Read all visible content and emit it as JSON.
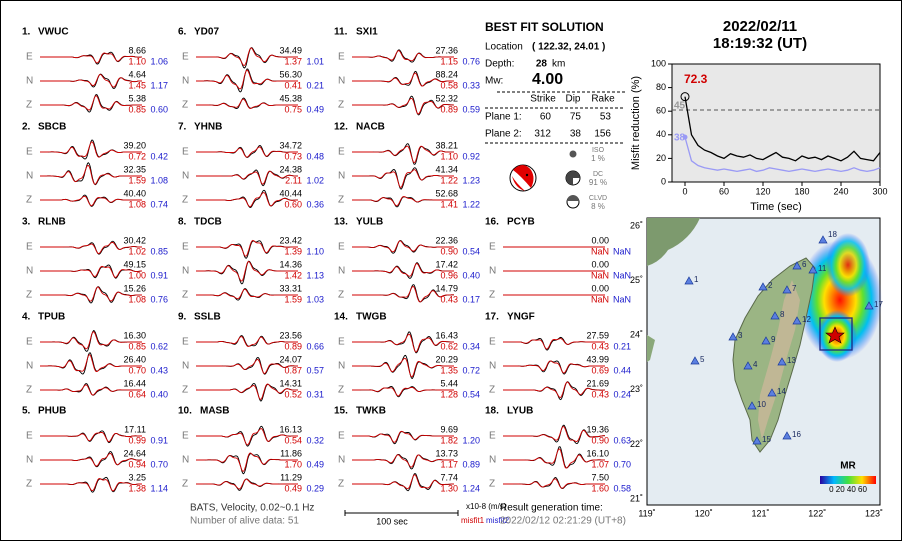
{
  "components": [
    "E",
    "N",
    "Z"
  ],
  "stations": [
    {
      "name": "1.",
      "code": "VWUC",
      "traces": [
        {
          "amplitude": "8.66",
          "misfit1": "1.10",
          "misfit2": "1.06"
        },
        {
          "amplitude": "4.64",
          "misfit1": "1.45",
          "misfit2": "1.17"
        },
        {
          "amplitude": "5.38",
          "misfit1": "0.85",
          "misfit2": "0.60"
        }
      ]
    },
    {
      "name": "2.",
      "code": "SBCB",
      "traces": [
        {
          "amplitude": "39.20",
          "misfit1": "0.72",
          "misfit2": "0.42"
        },
        {
          "amplitude": "32.35",
          "misfit1": "1.59",
          "misfit2": "1.08"
        },
        {
          "amplitude": "40.40",
          "misfit1": "1.08",
          "misfit2": "0.74"
        }
      ]
    },
    {
      "name": "3.",
      "code": "RLNB",
      "traces": [
        {
          "amplitude": "30.42",
          "misfit1": "1.02",
          "misfit2": "0.85"
        },
        {
          "amplitude": "49.15",
          "misfit1": "1.00",
          "misfit2": "0.91"
        },
        {
          "amplitude": "15.26",
          "misfit1": "1.08",
          "misfit2": "0.76"
        }
      ]
    },
    {
      "name": "4.",
      "code": "TPUB",
      "traces": [
        {
          "amplitude": "16.30",
          "misfit1": "0.85",
          "misfit2": "0.62"
        },
        {
          "amplitude": "26.40",
          "misfit1": "0.70",
          "misfit2": "0.43"
        },
        {
          "amplitude": "16.44",
          "misfit1": "0.64",
          "misfit2": "0.40"
        }
      ]
    },
    {
      "name": "5.",
      "code": "PHUB",
      "traces": [
        {
          "amplitude": "17.11",
          "misfit1": "0.99",
          "misfit2": "0.91"
        },
        {
          "amplitude": "24.64",
          "misfit1": "0.94",
          "misfit2": "0.70"
        },
        {
          "amplitude": "3.25",
          "misfit1": "1.38",
          "misfit2": "1.14"
        }
      ]
    },
    {
      "name": "6.",
      "code": "YD07",
      "traces": [
        {
          "amplitude": "34.49",
          "misfit1": "1.37",
          "misfit2": "1.01"
        },
        {
          "amplitude": "56.30",
          "misfit1": "0.41",
          "misfit2": "0.21"
        },
        {
          "amplitude": "45.38",
          "misfit1": "0.75",
          "misfit2": "0.49"
        }
      ]
    },
    {
      "name": "7.",
      "code": "YHNB",
      "traces": [
        {
          "amplitude": "34.72",
          "misfit1": "0.73",
          "misfit2": "0.48"
        },
        {
          "amplitude": "24.38",
          "misfit1": "2.11",
          "misfit2": "1.02"
        },
        {
          "amplitude": "40.44",
          "misfit1": "0.60",
          "misfit2": "0.36"
        }
      ]
    },
    {
      "name": "8.",
      "code": "TDCB",
      "traces": [
        {
          "amplitude": "23.42",
          "misfit1": "1.39",
          "misfit2": "1.10"
        },
        {
          "amplitude": "14.36",
          "misfit1": "1.42",
          "misfit2": "1.13"
        },
        {
          "amplitude": "33.31",
          "misfit1": "1.59",
          "misfit2": "1.03"
        }
      ]
    },
    {
      "name": "9.",
      "code": "SSLB",
      "traces": [
        {
          "amplitude": "23.56",
          "misfit1": "0.89",
          "misfit2": "0.66"
        },
        {
          "amplitude": "24.07",
          "misfit1": "0.87",
          "misfit2": "0.57"
        },
        {
          "amplitude": "14.31",
          "misfit1": "0.52",
          "misfit2": "0.31"
        }
      ]
    },
    {
      "name": "10.",
      "code": "MASB",
      "traces": [
        {
          "amplitude": "16.13",
          "misfit1": "0.54",
          "misfit2": "0.32"
        },
        {
          "amplitude": "11.86",
          "misfit1": "1.70",
          "misfit2": "0.49"
        },
        {
          "amplitude": "11.29",
          "misfit1": "0.49",
          "misfit2": "0.29"
        }
      ]
    },
    {
      "name": "11.",
      "code": "SXI1",
      "traces": [
        {
          "amplitude": "27.36",
          "misfit1": "1.15",
          "misfit2": "0.76"
        },
        {
          "amplitude": "88.24",
          "misfit1": "0.58",
          "misfit2": "0.33"
        },
        {
          "amplitude": "52.32",
          "misfit1": "0.89",
          "misfit2": "0.59"
        }
      ]
    },
    {
      "name": "12.",
      "code": "NACB",
      "traces": [
        {
          "amplitude": "38.21",
          "misfit1": "1.10",
          "misfit2": "0.92"
        },
        {
          "amplitude": "41.34",
          "misfit1": "1.22",
          "misfit2": "1.23"
        },
        {
          "amplitude": "52.68",
          "misfit1": "1.41",
          "misfit2": "1.22"
        }
      ]
    },
    {
      "name": "13.",
      "code": "YULB",
      "traces": [
        {
          "amplitude": "22.36",
          "misfit1": "0.90",
          "misfit2": "0.54"
        },
        {
          "amplitude": "17.42",
          "misfit1": "0.96",
          "misfit2": "0.40"
        },
        {
          "amplitude": "14.79",
          "misfit1": "0.43",
          "misfit2": "0.17"
        }
      ]
    },
    {
      "name": "14.",
      "code": "TWGB",
      "traces": [
        {
          "amplitude": "16.43",
          "misfit1": "0.62",
          "misfit2": "0.34"
        },
        {
          "amplitude": "20.29",
          "misfit1": "1.35",
          "misfit2": "0.72"
        },
        {
          "amplitude": "5.44",
          "misfit1": "1.28",
          "misfit2": "0.54"
        }
      ]
    },
    {
      "name": "15.",
      "code": "TWKB",
      "traces": [
        {
          "amplitude": "9.69",
          "misfit1": "1.82",
          "misfit2": "1.20"
        },
        {
          "amplitude": "13.73",
          "misfit1": "1.17",
          "misfit2": "0.89"
        },
        {
          "amplitude": "7.74",
          "misfit1": "1.30",
          "misfit2": "1.24"
        }
      ]
    },
    {
      "name": "16.",
      "code": "PCYB",
      "traces": [
        {
          "amplitude": "0.00",
          "misfit1": "NaN",
          "misfit2": "NaN"
        },
        {
          "amplitude": "0.00",
          "misfit1": "NaN",
          "misfit2": "NaN"
        },
        {
          "amplitude": "0.00",
          "misfit1": "NaN",
          "misfit2": "NaN"
        }
      ]
    },
    {
      "name": "17.",
      "code": "YNGF",
      "traces": [
        {
          "amplitude": "27.59",
          "misfit1": "0.43",
          "misfit2": "0.21"
        },
        {
          "amplitude": "43.99",
          "misfit1": "0.69",
          "misfit2": "0.44"
        },
        {
          "amplitude": "21.69",
          "misfit1": "0.43",
          "misfit2": "0.24"
        }
      ]
    },
    {
      "name": "18.",
      "code": "LYUB",
      "traces": [
        {
          "amplitude": "19.36",
          "misfit1": "0.90",
          "misfit2": "0.63"
        },
        {
          "amplitude": "16.10",
          "misfit1": "1.07",
          "misfit2": "0.70"
        },
        {
          "amplitude": "7.50",
          "misfit1": "1.60",
          "misfit2": "0.58"
        }
      ]
    }
  ],
  "solution": {
    "title": "BEST FIT SOLUTION",
    "location_label": "Location",
    "location": "( 122.32, 24.01 )",
    "depth_label": "Depth:",
    "depth": "28",
    "depth_unit": "km",
    "mw_label": "Mw:",
    "mw": "4.00",
    "headers": [
      "Strike",
      "Dip",
      "Rake"
    ],
    "planes": [
      {
        "label": "Plane 1:",
        "values": [
          "60",
          "75",
          "53"
        ]
      },
      {
        "label": "Plane 2:",
        "values": [
          "312",
          "38",
          "156"
        ]
      }
    ],
    "parts": [
      {
        "label": "ISO",
        "percent": "1 %"
      },
      {
        "label": "DC",
        "percent": "91 %"
      },
      {
        "label": "CLVD",
        "percent": "8 %"
      }
    ]
  },
  "event": {
    "date": "2022/02/11",
    "time": "18:19:32  (UT)"
  },
  "chart_data": {
    "type": "line",
    "xlabel": "Time (sec)",
    "ylabel": "Misfit reduction (%)",
    "x": [
      0,
      10,
      20,
      30,
      40,
      50,
      60,
      70,
      80,
      90,
      100,
      110,
      120,
      130,
      140,
      150,
      160,
      170,
      180,
      190,
      200,
      210,
      220,
      230,
      240,
      250,
      260,
      270,
      280,
      290,
      300
    ],
    "series": [
      {
        "color": "#000000",
        "values": [
          72.3,
          40,
          31,
          27,
          25,
          22,
          20,
          24,
          22,
          21,
          23,
          20,
          19,
          22,
          25,
          21,
          20,
          18,
          22,
          20,
          21,
          19,
          22,
          20,
          18,
          21,
          26,
          20,
          19,
          18,
          25
        ]
      },
      {
        "color": "#9a9af5",
        "values": [
          38,
          18,
          14,
          12,
          11,
          10,
          11,
          10,
          9,
          10,
          11,
          9,
          10,
          12,
          11,
          10,
          9,
          10,
          11,
          10,
          9,
          10,
          11,
          10,
          9,
          10,
          12,
          10,
          9,
          10,
          12
        ]
      }
    ],
    "xlim": [
      -20,
      300
    ],
    "ylim": [
      0,
      100
    ],
    "xticks": [
      0,
      60,
      120,
      180,
      240,
      300
    ],
    "yticks": [
      0,
      20,
      40,
      60,
      80,
      100
    ],
    "annotations": {
      "max_label": "72.3",
      "ref_label": "45",
      "start_label": "38"
    }
  },
  "map": {
    "lon_ticks": [
      {
        "value": 119,
        "label": "119˚"
      },
      {
        "value": 120,
        "label": "120˚"
      },
      {
        "value": 121,
        "label": "121˚"
      },
      {
        "value": 122,
        "label": "122˚"
      },
      {
        "value": 123,
        "label": "123˚"
      }
    ],
    "lat_ticks": [
      {
        "value": 21,
        "label": "21˚"
      },
      {
        "value": 22,
        "label": "22˚"
      },
      {
        "value": 23,
        "label": "23˚"
      },
      {
        "value": 24,
        "label": "24˚"
      },
      {
        "value": 25,
        "label": "25˚"
      },
      {
        "value": 26,
        "label": "26˚"
      }
    ],
    "stations": [
      "1",
      "2",
      "3",
      "4",
      "5",
      "6",
      "7",
      "8",
      "9",
      "10",
      "11",
      "12",
      "13",
      "14",
      "15",
      "16",
      "17",
      "18"
    ],
    "colorbar_title": "MR",
    "colorbar_ticks": "0 20 40 60"
  },
  "footer": {
    "source": "BATS, Velocity, 0.02~0.1 Hz",
    "alive": "Number of alive data: 51",
    "scale": "100 sec",
    "units": "x10-8 (m/s)",
    "misfit1": "misfit1",
    "misfit2": "misfit2",
    "generated_label": "Result generation time:",
    "generated": "2022/02/12 02:21:29 (UT+8)"
  }
}
